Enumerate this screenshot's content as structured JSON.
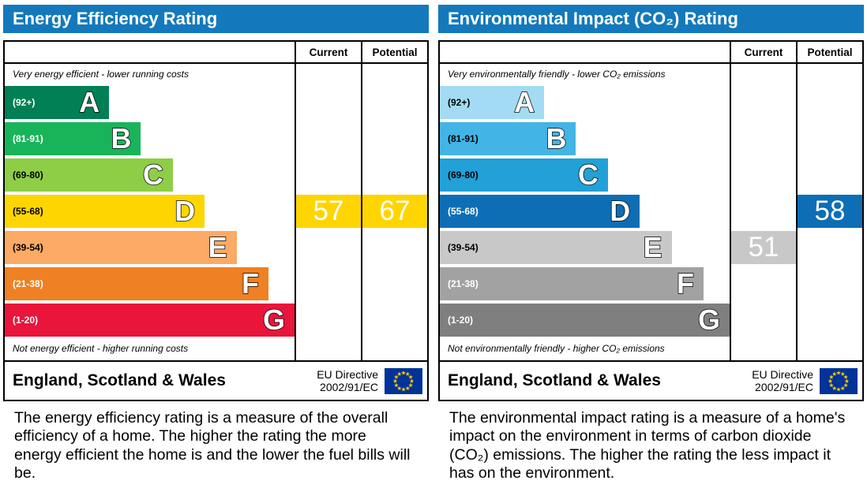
{
  "colors": {
    "header_blue": "#1479bc",
    "eu_flag_blue": "#003399",
    "eu_star_yellow": "#ffcc00"
  },
  "chart_data": [
    {
      "type": "bar",
      "title": "Energy Efficiency Rating",
      "columns": {
        "current": "Current",
        "potential": "Potential"
      },
      "top_note": "Very energy efficient - lower running costs",
      "bottom_note": "Not energy efficient - higher running costs",
      "bands": [
        {
          "letter": "A",
          "range": "(92+)",
          "color": "#008054",
          "width_pct": 36,
          "text_color": "#ffffff"
        },
        {
          "letter": "B",
          "range": "(81-91)",
          "color": "#19b459",
          "width_pct": 47,
          "text_color": "#ffffff"
        },
        {
          "letter": "C",
          "range": "(69-80)",
          "color": "#8dce46",
          "width_pct": 58,
          "text_color": "#000000"
        },
        {
          "letter": "D",
          "range": "(55-68)",
          "color": "#ffd500",
          "width_pct": 69,
          "text_color": "#000000"
        },
        {
          "letter": "E",
          "range": "(39-54)",
          "color": "#fcaa65",
          "width_pct": 80,
          "text_color": "#000000"
        },
        {
          "letter": "F",
          "range": "(21-38)",
          "color": "#ef8023",
          "width_pct": 91,
          "text_color": "#ffffff"
        },
        {
          "letter": "G",
          "range": "(1-20)",
          "color": "#e9153b",
          "width_pct": 100,
          "text_color": "#ffffff"
        }
      ],
      "current": {
        "value": 57,
        "band": "D"
      },
      "potential": {
        "value": 67,
        "band": "D"
      },
      "footer": {
        "region": "England, Scotland & Wales",
        "directive_line1": "EU Directive",
        "directive_line2": "2002/91/EC"
      }
    },
    {
      "type": "bar",
      "title": "Environmental Impact (CO₂) Rating",
      "columns": {
        "current": "Current",
        "potential": "Potential"
      },
      "top_note": "Very environmentally friendly - lower CO₂ emissions",
      "bottom_note": "Not environmentally friendly - higher CO₂ emissions",
      "bands": [
        {
          "letter": "A",
          "range": "(92+)",
          "color": "#a3dbf4",
          "width_pct": 36,
          "text_color": "#000000"
        },
        {
          "letter": "B",
          "range": "(81-91)",
          "color": "#42b4e6",
          "width_pct": 47,
          "text_color": "#000000"
        },
        {
          "letter": "C",
          "range": "(69-80)",
          "color": "#22a0d8",
          "width_pct": 58,
          "text_color": "#000000"
        },
        {
          "letter": "D",
          "range": "(55-68)",
          "color": "#0d6eb5",
          "width_pct": 69,
          "text_color": "#ffffff"
        },
        {
          "letter": "E",
          "range": "(39-54)",
          "color": "#c8c8c8",
          "width_pct": 80,
          "text_color": "#000000"
        },
        {
          "letter": "F",
          "range": "(21-38)",
          "color": "#a2a2a2",
          "width_pct": 91,
          "text_color": "#ffffff"
        },
        {
          "letter": "G",
          "range": "(1-20)",
          "color": "#7f7f7f",
          "width_pct": 100,
          "text_color": "#ffffff"
        }
      ],
      "current": {
        "value": 51,
        "band": "E"
      },
      "potential": {
        "value": 58,
        "band": "D"
      },
      "footer": {
        "region": "England, Scotland & Wales",
        "directive_line1": "EU Directive",
        "directive_line2": "2002/91/EC"
      }
    }
  ],
  "descriptions": [
    "The energy efficiency rating is a measure of the overall efficiency of a home. The higher the rating the more energy efficient the home is and the lower the fuel bills will be.",
    "The environmental impact rating is a measure of a home's impact on the environment in terms of carbon dioxide (CO₂) emissions. The higher the rating the less impact it has on the environment."
  ]
}
